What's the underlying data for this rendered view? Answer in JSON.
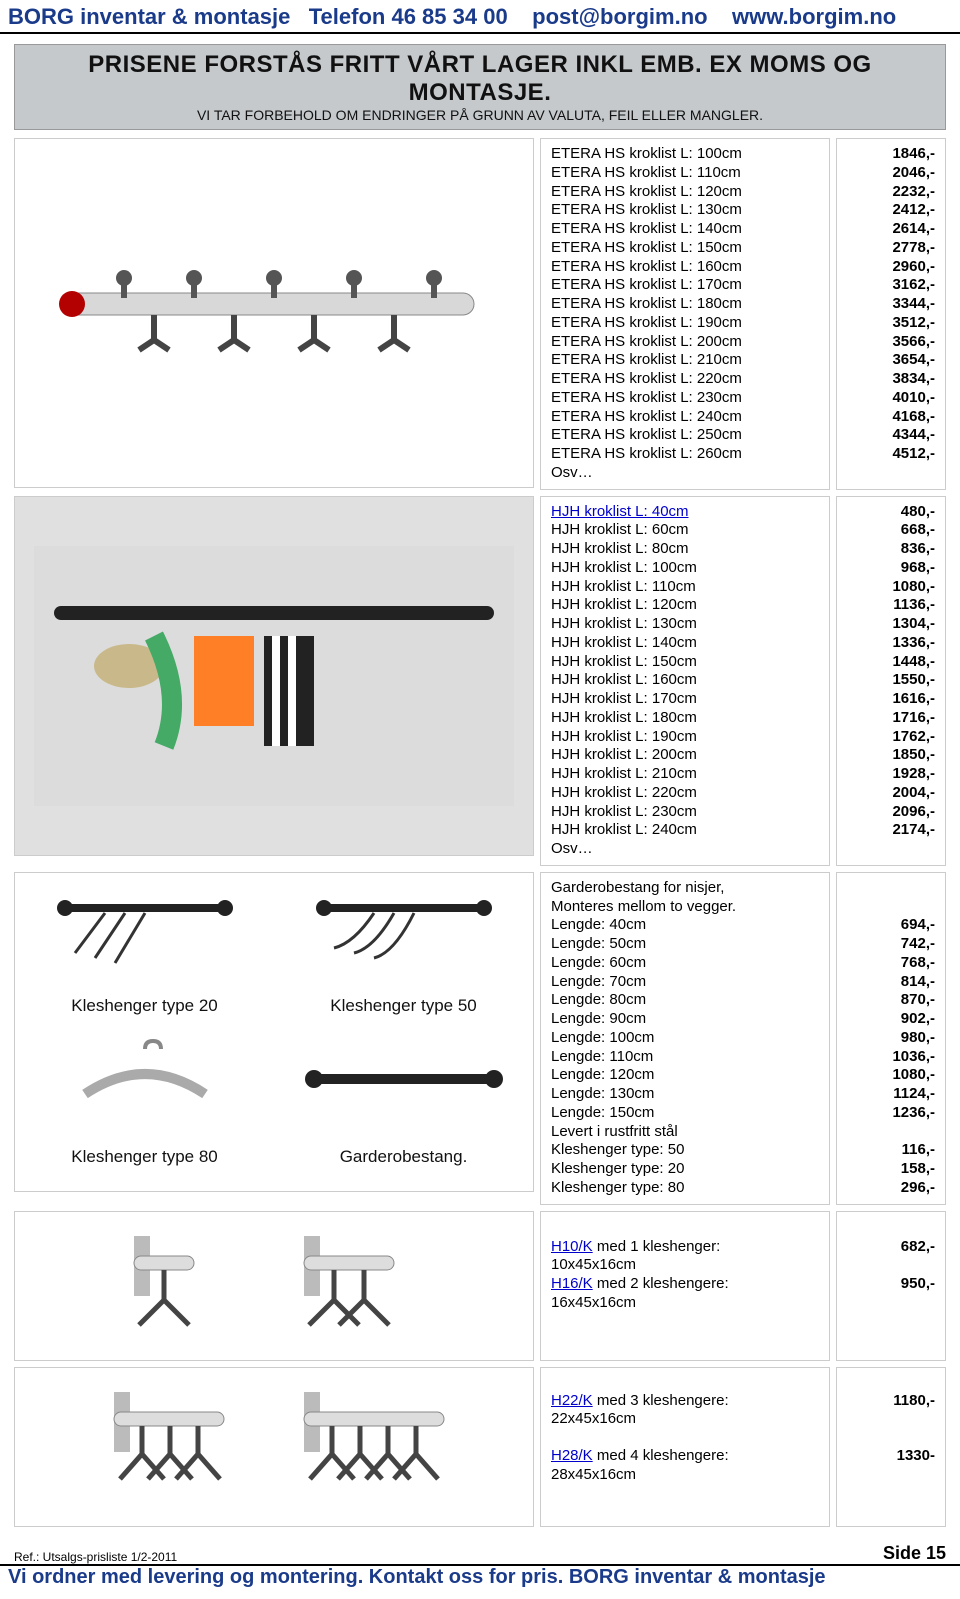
{
  "header": {
    "company": "BORG inventar & montasje",
    "phone_label": "Telefon",
    "phone": "46 85 34 00",
    "email": "post@borgim.no",
    "web": "www.borgim.no"
  },
  "notice": {
    "title": "PRISENE FORSTÅS FRITT VÅRT LAGER INKL EMB.  EX MOMS OG MONTASJE.",
    "sub": "VI TAR FORBEHOLD OM ENDRINGER PÅ GRUNN AV VALUTA, FEIL ELLER MANGLER."
  },
  "section1": {
    "items": [
      {
        "label": "ETERA HS kroklist  L: 100cm",
        "price": "1846,-"
      },
      {
        "label": "ETERA HS kroklist  L: 110cm",
        "price": "2046,-"
      },
      {
        "label": "ETERA HS kroklist  L: 120cm",
        "price": "2232,-"
      },
      {
        "label": "ETERA HS kroklist  L: 130cm",
        "price": "2412,-"
      },
      {
        "label": "ETERA HS kroklist  L: 140cm",
        "price": "2614,-"
      },
      {
        "label": "ETERA HS kroklist  L: 150cm",
        "price": "2778,-"
      },
      {
        "label": "ETERA HS kroklist  L: 160cm",
        "price": "2960,-"
      },
      {
        "label": "ETERA HS kroklist  L: 170cm",
        "price": "3162,-"
      },
      {
        "label": "ETERA HS kroklist  L: 180cm",
        "price": "3344,-"
      },
      {
        "label": "ETERA HS kroklist  L: 190cm",
        "price": "3512,-"
      },
      {
        "label": "ETERA HS kroklist  L: 200cm",
        "price": "3566,-"
      },
      {
        "label": "ETERA HS kroklist  L: 210cm",
        "price": "3654,-"
      },
      {
        "label": "ETERA HS kroklist  L: 220cm",
        "price": "3834,-"
      },
      {
        "label": "ETERA HS kroklist  L: 230cm",
        "price": "4010,-"
      },
      {
        "label": "ETERA HS kroklist  L: 240cm",
        "price": "4168,-"
      },
      {
        "label": "ETERA HS kroklist  L: 250cm",
        "price": "4344,-"
      },
      {
        "label": "ETERA HS kroklist  L: 260cm",
        "price": "4512,-"
      }
    ],
    "osv": "Osv…"
  },
  "section2": {
    "first_link": "HJH kroklist  L:   40cm",
    "items": [
      {
        "label": "HJH kroklist  L:   60cm",
        "price": "668,-"
      },
      {
        "label": "HJH kroklist  L:   80cm",
        "price": "836,-"
      },
      {
        "label": "HJH kroklist  L: 100cm",
        "price": "968,-"
      },
      {
        "label": "HJH kroklist  L: 110cm",
        "price": "1080,-"
      },
      {
        "label": "HJH kroklist  L: 120cm",
        "price": "1136,-"
      },
      {
        "label": "HJH kroklist  L: 130cm",
        "price": "1304,-"
      },
      {
        "label": "HJH kroklist  L: 140cm",
        "price": "1336,-"
      },
      {
        "label": "HJH kroklist  L: 150cm",
        "price": "1448,-"
      },
      {
        "label": "HJH kroklist  L: 160cm",
        "price": "1550,-"
      },
      {
        "label": "HJH kroklist  L: 170cm",
        "price": "1616,-"
      },
      {
        "label": "HJH kroklist  L: 180cm",
        "price": "1716,-"
      },
      {
        "label": "HJH kroklist  L: 190cm",
        "price": "1762,-"
      },
      {
        "label": "HJH kroklist  L: 200cm",
        "price": "1850,-"
      },
      {
        "label": "HJH kroklist  L: 210cm",
        "price": "1928,-"
      },
      {
        "label": "HJH kroklist  L: 220cm",
        "price": "2004,-"
      },
      {
        "label": "HJH kroklist  L: 230cm",
        "price": "2096,-"
      },
      {
        "label": "HJH kroklist  L: 240cm",
        "price": "2174,-"
      }
    ],
    "first_price": "480,-",
    "osv": "Osv…"
  },
  "section3": {
    "intro1": "Garderobestang for nisjer,",
    "intro2": "Monteres mellom to vegger.",
    "lengths": [
      {
        "label": "Lengde:  40cm",
        "price": "694,-"
      },
      {
        "label": "Lengde:  50cm",
        "price": "742,-"
      },
      {
        "label": "Lengde:  60cm",
        "price": "768,-"
      },
      {
        "label": "Lengde:  70cm",
        "price": "814,-"
      },
      {
        "label": "Lengde:  80cm",
        "price": "870,-"
      },
      {
        "label": "Lengde:  90cm",
        "price": "902,-"
      },
      {
        "label": "Lengde: 100cm",
        "price": "980,-"
      },
      {
        "label": "Lengde: 110cm",
        "price": "1036,-"
      },
      {
        "label": "Lengde: 120cm",
        "price": "1080,-"
      },
      {
        "label": "Lengde: 130cm",
        "price": "1124,-"
      },
      {
        "label": "Lengde: 150cm",
        "price": "1236,-"
      }
    ],
    "levert": "Levert i rustfritt stål",
    "kleshenger": [
      {
        "label": "Kleshenger type: 50",
        "price": "116,-"
      },
      {
        "label": "Kleshenger type: 20",
        "price": "158,-"
      },
      {
        "label": "Kleshenger type: 80",
        "price": "296,-"
      }
    ],
    "captions": {
      "t20": "Kleshenger type 20",
      "t50": "Kleshenger type 50",
      "t80": "Kleshenger type 80",
      "gar": "Garderobestang."
    }
  },
  "section4": {
    "h10_link": "H10/K",
    "h10_text": " med 1 kleshenger:",
    "h10_dim": "10x45x16cm",
    "h10_price": "682,-",
    "h16_link": "H16/K",
    "h16_text": " med 2 kleshengere:",
    "h16_dim": "16x45x16cm",
    "h16_price": "950,-"
  },
  "section5": {
    "h22_link": "H22/K",
    "h22_text": " med 3 kleshengere:",
    "h22_dim": "22x45x16cm",
    "h22_price": "1180,-",
    "h28_link": "H28/K",
    "h28_text": " med 4 kleshengere:",
    "h28_dim": "28x45x16cm",
    "h28_price": "1330-"
  },
  "footer": {
    "ref": "Ref.: Utsalgs-prisliste 1/2-2011",
    "side": "Side 15",
    "line": "Vi ordner med levering og montering. Kontakt oss for pris.  BORG inventar & montasje"
  }
}
